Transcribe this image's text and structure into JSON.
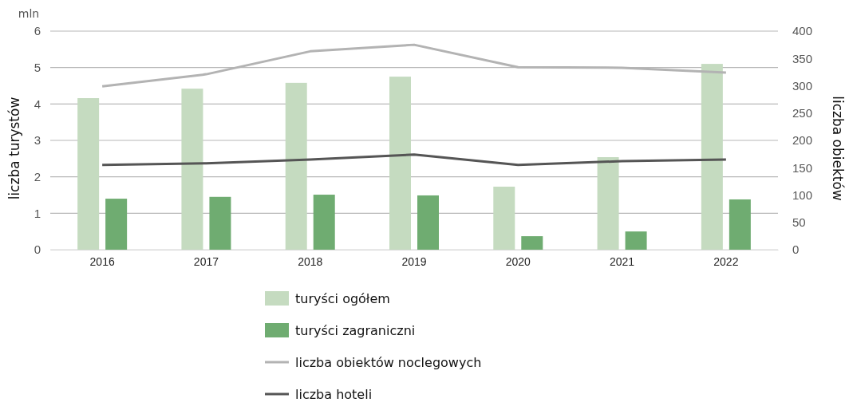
{
  "chart_data": {
    "type": "bar",
    "categories": [
      "2016",
      "2017",
      "2018",
      "2019",
      "2020",
      "2021",
      "2022"
    ],
    "ylabel": "liczba turystów",
    "y2label": "liczba obiektów",
    "annotations": [
      "mln"
    ],
    "ylim": [
      0,
      6
    ],
    "yticks": [
      0,
      1,
      2,
      3,
      4,
      5,
      6
    ],
    "y2lim": [
      0,
      400
    ],
    "y2ticks": [
      0,
      50,
      100,
      150,
      200,
      250,
      300,
      350,
      400
    ],
    "grid": "y",
    "legend": "bottom",
    "series": [
      {
        "name": "turyści ogółem",
        "color": "#c5dbc0",
        "values": [
          4.16,
          4.42,
          4.58,
          4.75,
          1.73,
          2.54,
          5.1
        ]
      },
      {
        "name": "turyści zagraniczni",
        "color": "#6fac71",
        "values": [
          1.4,
          1.45,
          1.51,
          1.49,
          0.37,
          0.5,
          1.38
        ]
      },
      {
        "name": "liczba obiektów noclegowych",
        "type": "line",
        "axis": "y2",
        "color": "#b3b3b3",
        "values": [
          299,
          321,
          363,
          375,
          334,
          333,
          324
        ]
      },
      {
        "name": "liczba hoteli",
        "type": "line",
        "axis": "y2",
        "color": "#555555",
        "values": [
          155,
          158,
          165,
          174,
          155,
          162,
          165
        ]
      }
    ]
  }
}
